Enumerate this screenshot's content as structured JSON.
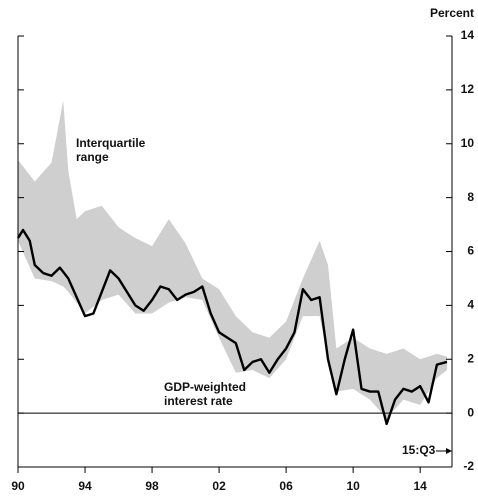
{
  "chart_data": {
    "type": "line",
    "y_label": "Percent",
    "annotation": "15:Q3",
    "xlim": [
      1990,
      2015.9
    ],
    "xticks": [
      {
        "value": 1990,
        "label": "90"
      },
      {
        "value": 1994,
        "label": "94"
      },
      {
        "value": 1998,
        "label": "98"
      },
      {
        "value": 2002,
        "label": "02"
      },
      {
        "value": 2006,
        "label": "06"
      },
      {
        "value": 2010,
        "label": "10"
      },
      {
        "value": 2014,
        "label": "14"
      }
    ],
    "ylim": [
      -2,
      14
    ],
    "yticks": [
      -2,
      0,
      2,
      4,
      6,
      8,
      10,
      12,
      14
    ],
    "band": {
      "name": "Interquartile range",
      "color": "#cfcfcf",
      "x": [
        1990,
        1991,
        1992,
        1992.7,
        1993,
        1993.5,
        1994,
        1995,
        1996,
        1997,
        1998,
        1999,
        2000,
        2001,
        2002,
        2003,
        2004,
        2005,
        2006,
        2007,
        2008,
        2008.5,
        2009,
        2010,
        2011,
        2012,
        2013,
        2014,
        2015,
        2015.6
      ],
      "upper": [
        9.4,
        8.6,
        9.3,
        11.6,
        9.0,
        7.2,
        7.5,
        7.7,
        6.9,
        6.5,
        6.2,
        7.2,
        6.3,
        5.0,
        4.6,
        3.6,
        3.0,
        2.8,
        3.4,
        5.0,
        6.4,
        5.5,
        2.4,
        2.8,
        2.4,
        2.2,
        2.4,
        2.0,
        2.2,
        2.1
      ],
      "lower": [
        6.4,
        5.0,
        4.9,
        4.7,
        4.5,
        4.1,
        3.7,
        4.2,
        4.4,
        3.7,
        3.7,
        4.1,
        4.3,
        4.2,
        2.8,
        1.5,
        1.6,
        1.3,
        2.0,
        3.6,
        3.6,
        2.0,
        0.8,
        0.9,
        0.5,
        -0.2,
        0.5,
        0.3,
        1.3,
        1.6
      ]
    },
    "series": [
      {
        "name": "GDP-weighted interest rate",
        "color": "#000000",
        "x": [
          1990.0,
          1990.3,
          1990.7,
          1991.0,
          1991.5,
          1992.0,
          1992.5,
          1993.0,
          1993.5,
          1994.0,
          1994.5,
          1995.0,
          1995.5,
          1996.0,
          1996.5,
          1997.0,
          1997.5,
          1998.0,
          1998.5,
          1999.0,
          1999.5,
          2000.0,
          2000.5,
          2001.0,
          2001.5,
          2002.0,
          2002.5,
          2003.0,
          2003.5,
          2004.0,
          2004.5,
          2005.0,
          2005.5,
          2006.0,
          2006.5,
          2007.0,
          2007.5,
          2008.0,
          2008.5,
          2009.0,
          2009.5,
          2010.0,
          2010.5,
          2011.0,
          2011.5,
          2012.0,
          2012.5,
          2013.0,
          2013.5,
          2014.0,
          2014.5,
          2015.0,
          2015.6
        ],
        "values": [
          6.5,
          6.8,
          6.4,
          5.5,
          5.2,
          5.1,
          5.4,
          5.0,
          4.3,
          3.6,
          3.7,
          4.5,
          5.3,
          5.0,
          4.5,
          4.0,
          3.8,
          4.2,
          4.7,
          4.6,
          4.2,
          4.4,
          4.5,
          4.7,
          3.7,
          3.0,
          2.8,
          2.6,
          1.6,
          1.9,
          2.0,
          1.5,
          2.0,
          2.4,
          3.0,
          4.6,
          4.2,
          4.3,
          2.0,
          0.7,
          2.0,
          3.1,
          0.9,
          0.8,
          0.8,
          -0.4,
          0.5,
          0.9,
          0.8,
          1.0,
          0.4,
          1.8,
          1.9
        ]
      }
    ]
  }
}
